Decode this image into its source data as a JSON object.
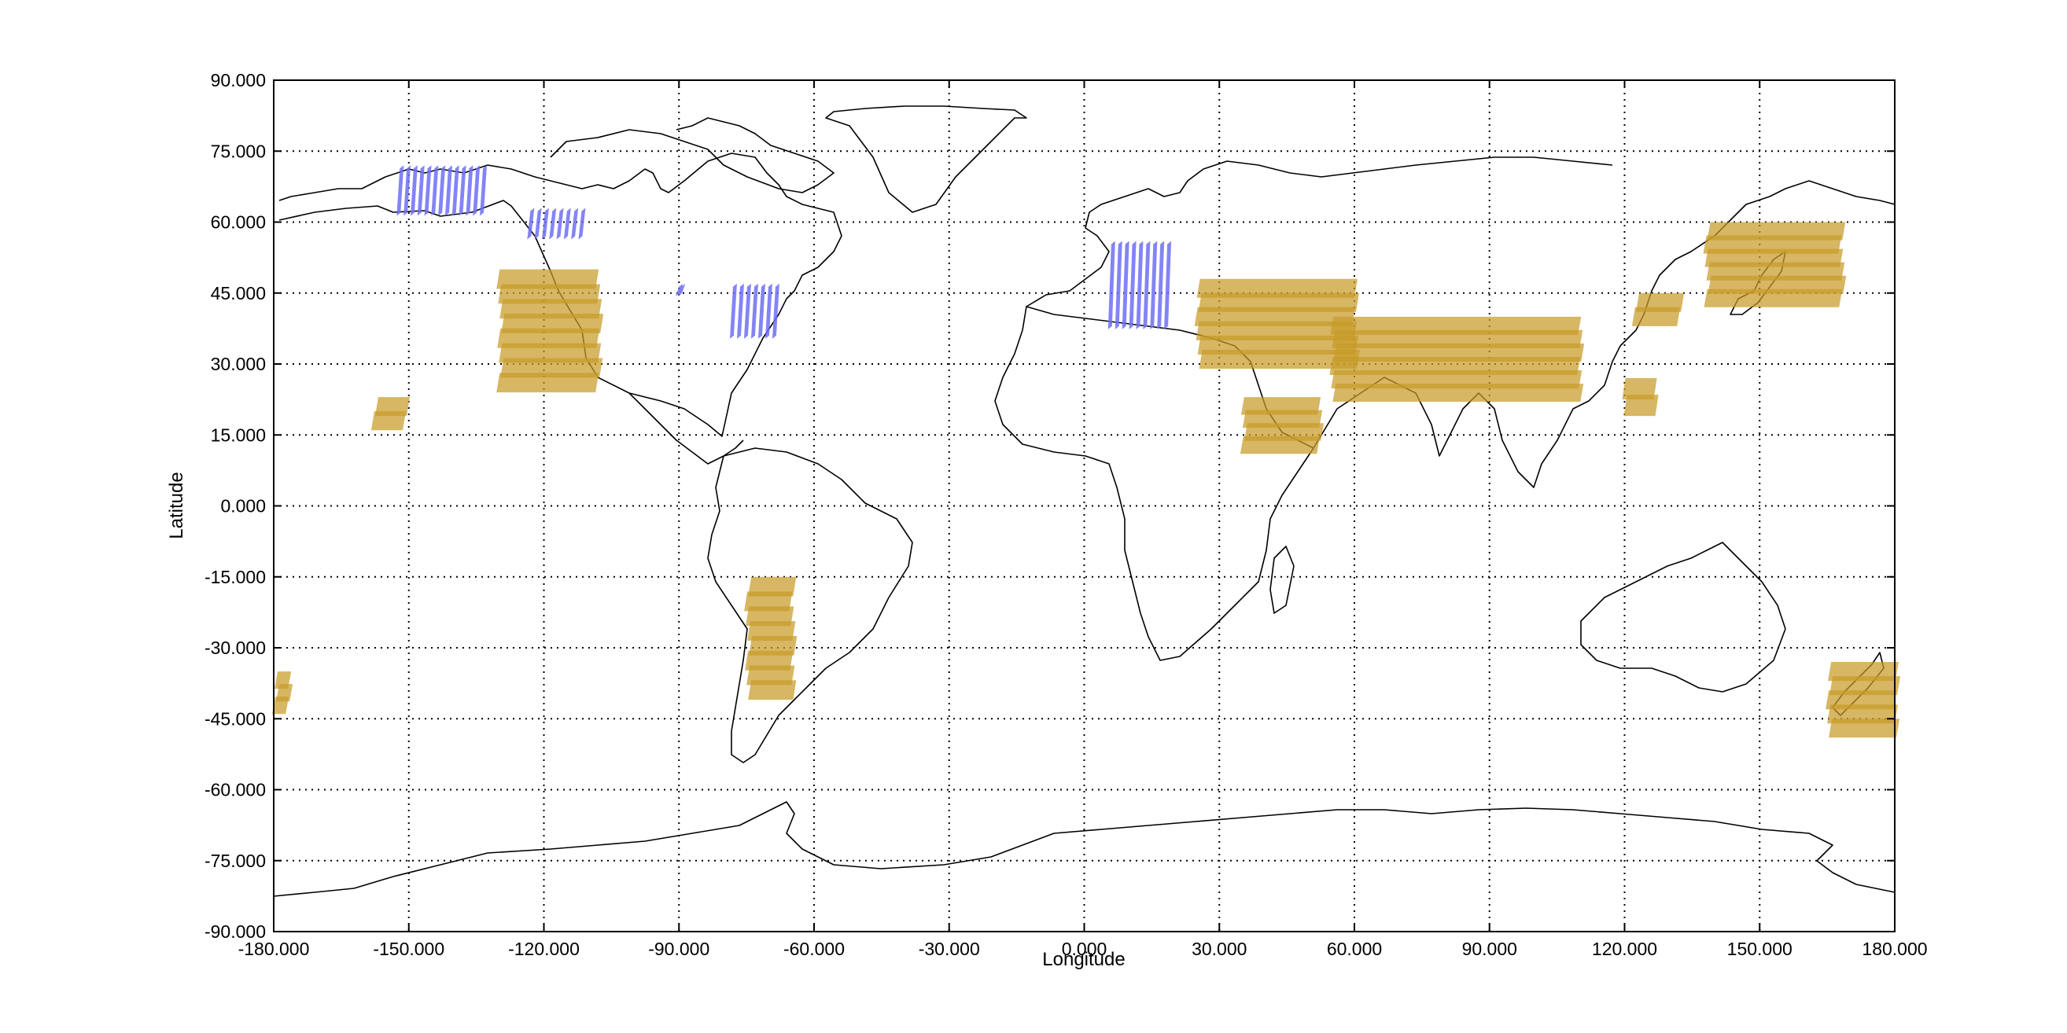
{
  "chart_data": {
    "type": "scatter",
    "xlabel": "Longitude",
    "ylabel": "Latitude",
    "xlim": [
      -180,
      180
    ],
    "ylim": [
      -90,
      90
    ],
    "grid": true,
    "xticks": [
      "-180.000",
      "-150.000",
      "-120.000",
      "-90.000",
      "-60.000",
      "-30.000",
      "0.000",
      "30.000",
      "60.000",
      "90.000",
      "120.000",
      "150.000",
      "180.000"
    ],
    "yticks": [
      "90.000",
      "75.000",
      "60.000",
      "45.000",
      "30.000",
      "15.000",
      "0.000",
      "-15.000",
      "-30.000",
      "-45.000",
      "-60.000",
      "-75.000",
      "-90.000"
    ],
    "series": [
      {
        "color": "#c89b28",
        "regions": [
          {
            "lon": [
              -130,
              -108
            ],
            "lat": [
              25,
              50
            ]
          },
          {
            "lon": [
              -158,
              -151
            ],
            "lat": [
              17,
              23
            ]
          },
          {
            "lon": [
              -75,
              -65
            ],
            "lat": [
              -40,
              -15
            ]
          },
          {
            "lon": [
              -180,
              -177
            ],
            "lat": [
              -43,
              -35
            ]
          },
          {
            "lon": [
              25,
              60
            ],
            "lat": [
              30,
              48
            ]
          },
          {
            "lon": [
              35,
              52
            ],
            "lat": [
              12,
              23
            ]
          },
          {
            "lon": [
              55,
              110
            ],
            "lat": [
              23,
              40
            ]
          },
          {
            "lon": [
              120,
              127
            ],
            "lat": [
              20,
              27
            ]
          },
          {
            "lon": [
              122,
              132
            ],
            "lat": [
              39,
              45
            ]
          },
          {
            "lon": [
              138,
              168
            ],
            "lat": [
              43,
              60
            ]
          },
          {
            "lon": [
              165,
              180
            ],
            "lat": [
              -48,
              -33
            ]
          }
        ]
      },
      {
        "color": "#6e6ef5",
        "regions": [
          {
            "lon": [
              -152,
              -132
            ],
            "lat": [
              62,
              72
            ]
          },
          {
            "lon": [
              -123,
              -110
            ],
            "lat": [
              57,
              63
            ]
          },
          {
            "lon": [
              -90,
              -90
            ],
            "lat": [
              45,
              47
            ]
          },
          {
            "lon": [
              -78,
              -67
            ],
            "lat": [
              36,
              47
            ]
          },
          {
            "lon": [
              6,
              20
            ],
            "lat": [
              38,
              56
            ]
          }
        ]
      }
    ]
  }
}
